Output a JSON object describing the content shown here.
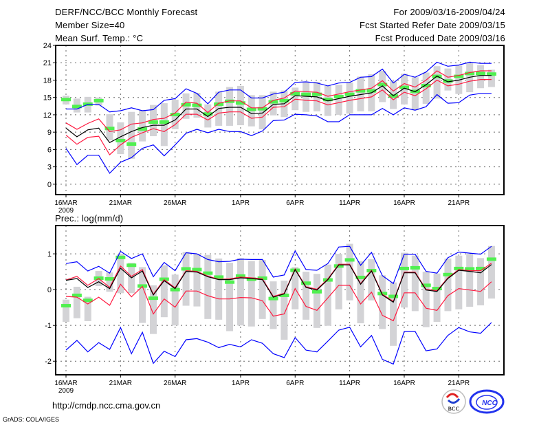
{
  "header": {
    "title": "DERF/NCC/BCC Monthly Forecast",
    "member_size": "Member Size=40",
    "variable": "Mean Surf. Temp.: °C",
    "period": "For 2009/03/16-2009/04/24",
    "started": "Fcst Started Refer Date 2009/03/15",
    "produced": "Fcst Produced Date 2009/03/16"
  },
  "footer": {
    "url": "http://cmdp.ncc.cma.gov.cn",
    "credit": "GrADS: COLA/IGES",
    "logo_bcc": "BCC",
    "logo_ncc": "NCC"
  },
  "colors": {
    "ensemble_range": "#0000ff",
    "spread": "#ff1a40",
    "mean": "#000000",
    "observed": "#50f050",
    "box": "#d3d3d6"
  },
  "chart_data": [
    {
      "type": "line",
      "title": "Mean Surf. Temp.: °C",
      "x_tick_labels": [
        {
          "day": 0,
          "label": "16MAR"
        },
        {
          "day": 5,
          "label": "21MAR"
        },
        {
          "day": 10,
          "label": "26MAR"
        },
        {
          "day": 16,
          "label": "1APR"
        },
        {
          "day": 21,
          "label": "6APR"
        },
        {
          "day": 26,
          "label": "11APR"
        },
        {
          "day": 31,
          "label": "16APR"
        },
        {
          "day": 36,
          "label": "21APR"
        }
      ],
      "year_label": "2009",
      "yticks": [
        0,
        3,
        6,
        9,
        12,
        15,
        18,
        21,
        24
      ],
      "ylim": [
        -1.8,
        24
      ],
      "grid": true,
      "boxes": [
        [
          13.8,
          15.3
        ],
        [
          12.4,
          14.8
        ],
        [
          12.4,
          15.1
        ],
        [
          13.6,
          15.0
        ],
        [
          7.6,
          12.1
        ],
        [
          5.2,
          10.7
        ],
        [
          4.4,
          12.5
        ],
        [
          7.4,
          12.8
        ],
        [
          8.3,
          13.7
        ],
        [
          6.6,
          14.0
        ],
        [
          9.5,
          14.6
        ],
        [
          11.3,
          15.7
        ],
        [
          11.5,
          15.8
        ],
        [
          9.8,
          13.8
        ],
        [
          10.1,
          16.0
        ],
        [
          10.1,
          16.8
        ],
        [
          10.2,
          17.0
        ],
        [
          10.0,
          15.4
        ],
        [
          9.5,
          15.4
        ],
        [
          11.9,
          16.0
        ],
        [
          11.6,
          16.2
        ],
        [
          12.8,
          16.7
        ],
        [
          12.5,
          17.7
        ],
        [
          12.6,
          17.7
        ],
        [
          11.8,
          17.0
        ],
        [
          12.0,
          17.2
        ],
        [
          12.2,
          17.6
        ],
        [
          12.6,
          18.6
        ],
        [
          12.6,
          19.0
        ],
        [
          14.2,
          19.6
        ],
        [
          13.0,
          17.8
        ],
        [
          13.8,
          19.1
        ],
        [
          12.8,
          18.5
        ],
        [
          13.9,
          19.3
        ],
        [
          14.8,
          20.4
        ],
        [
          16.2,
          20.0
        ],
        [
          15.6,
          20.5
        ],
        [
          15.9,
          20.9
        ],
        [
          16.6,
          20.6
        ],
        [
          16.8,
          19.8
        ]
      ],
      "observed": [
        14.7,
        13.5,
        13.9,
        14.5,
        9.7,
        7.6,
        7.0,
        9.6,
        10.8,
        10.8,
        12.1,
        13.8,
        13.7,
        12.2,
        13.9,
        14.4,
        14.1,
        13.0,
        13.1,
        14.3,
        14.5,
        15.7,
        15.6,
        15.6,
        14.7,
        15.2,
        15.6,
        16.2,
        16.2,
        17.3,
        15.3,
        16.8,
        16.1,
        17.1,
        18.7,
        17.9,
        18.7,
        19.2,
        19.2,
        19.1
      ],
      "series": [
        {
          "name": "max",
          "color": "#0000ff",
          "values": [
            13.0,
            13.0,
            13.8,
            13.8,
            12.5,
            12.7,
            13.2,
            12.7,
            12.9,
            14.5,
            14.8,
            16.5,
            15.7,
            13.9,
            15.9,
            16.3,
            16.3,
            14.9,
            14.9,
            15.6,
            15.9,
            17.6,
            17.7,
            17.5,
            17.0,
            17.5,
            17.6,
            18.5,
            18.6,
            19.9,
            17.5,
            19.0,
            18.5,
            19.4,
            21.1,
            20.4,
            20.6,
            21.1,
            20.9,
            20.9
          ]
        },
        {
          "name": "upper",
          "color": "#ff1a40",
          "values": [
            10.6,
            9.5,
            10.5,
            11.3,
            9.1,
            9.4,
            10.4,
            10.6,
            11.2,
            11.4,
            12.3,
            14.2,
            14.0,
            12.4,
            14.0,
            14.4,
            14.4,
            13.2,
            13.2,
            14.5,
            14.9,
            16.1,
            16.0,
            15.9,
            15.2,
            15.6,
            16.0,
            16.3,
            16.6,
            17.9,
            16.1,
            17.4,
            16.8,
            18.0,
            19.6,
            18.5,
            18.8,
            19.3,
            19.6,
            19.6
          ]
        },
        {
          "name": "mean",
          "color": "#000000",
          "values": [
            9.7,
            8.2,
            9.4,
            9.7,
            7.2,
            8.2,
            9.1,
            9.8,
            10.2,
            10.2,
            11.1,
            13.0,
            13.0,
            11.7,
            13.1,
            13.3,
            13.3,
            12.2,
            12.3,
            13.8,
            13.9,
            15.3,
            15.2,
            15.1,
            14.4,
            14.8,
            15.2,
            15.5,
            15.8,
            17.0,
            15.3,
            16.6,
            16.0,
            17.2,
            18.7,
            17.7,
            18.0,
            18.5,
            18.8,
            18.8
          ]
        },
        {
          "name": "lower",
          "color": "#ff1a40",
          "values": [
            8.5,
            6.9,
            8.1,
            8.3,
            5.1,
            6.8,
            8.1,
            8.9,
            9.6,
            9.1,
            10.3,
            12.1,
            12.1,
            11.1,
            12.3,
            12.5,
            12.5,
            11.4,
            11.6,
            13.3,
            13.4,
            14.7,
            14.5,
            14.4,
            13.7,
            14.1,
            14.5,
            14.8,
            15.1,
            16.3,
            14.6,
            15.9,
            15.3,
            16.5,
            18.0,
            17.0,
            17.3,
            17.8,
            18.1,
            18.1
          ]
        },
        {
          "name": "min",
          "color": "#0000ff",
          "values": [
            6.2,
            3.4,
            5.0,
            5.0,
            1.9,
            3.8,
            4.6,
            6.2,
            6.8,
            4.9,
            6.8,
            8.8,
            9.5,
            8.9,
            9.5,
            9.1,
            9.1,
            8.4,
            9.2,
            11.0,
            11.1,
            12.1,
            12.0,
            11.8,
            10.8,
            10.8,
            12.0,
            12.0,
            12.0,
            13.1,
            12.0,
            13.2,
            12.8,
            13.4,
            15.5,
            14.0,
            14.1,
            15.4,
            15.7,
            15.7
          ]
        }
      ]
    },
    {
      "type": "line",
      "title": "Prec.: log(mm/d)",
      "x_tick_labels": [
        {
          "day": 0,
          "label": "16MAR"
        },
        {
          "day": 5,
          "label": "21MAR"
        },
        {
          "day": 10,
          "label": "26MAR"
        },
        {
          "day": 16,
          "label": "1APR"
        },
        {
          "day": 21,
          "label": "6APR"
        },
        {
          "day": 26,
          "label": "11APR"
        },
        {
          "day": 31,
          "label": "16APR"
        },
        {
          "day": 36,
          "label": "21APR"
        }
      ],
      "year_label": "2009",
      "yticks": [
        -2,
        -1,
        0,
        1
      ],
      "ylim": [
        -2.38,
        1.79
      ],
      "grid": true,
      "boxes": [
        [
          -0.9,
          -0.28
        ],
        [
          -0.8,
          0.08
        ],
        [
          -0.88,
          -0.2
        ],
        [
          0.1,
          0.52
        ],
        [
          -0.06,
          0.48
        ],
        [
          -0.1,
          1.0
        ],
        [
          -0.1,
          0.75
        ],
        [
          -0.93,
          0.63
        ],
        [
          -1.24,
          0.12
        ],
        [
          -0.77,
          0.68
        ],
        [
          -1.0,
          0.42
        ],
        [
          -0.45,
          1.05
        ],
        [
          -0.47,
          1.0
        ],
        [
          -0.82,
          0.97
        ],
        [
          -0.84,
          0.87
        ],
        [
          -1.16,
          0.75
        ],
        [
          -1.0,
          0.88
        ],
        [
          -1.03,
          0.8
        ],
        [
          -0.82,
          0.83
        ],
        [
          -1.1,
          0.23
        ],
        [
          -1.4,
          0.25
        ],
        [
          -0.55,
          0.63
        ],
        [
          -0.84,
          0.5
        ],
        [
          -1.07,
          0.44
        ],
        [
          -1.01,
          0.7
        ],
        [
          -0.55,
          1.0
        ],
        [
          -0.3,
          1.28
        ],
        [
          -0.94,
          0.8
        ],
        [
          -0.3,
          0.85
        ],
        [
          -1.1,
          0.4
        ],
        [
          -1.57,
          0.2
        ],
        [
          -0.5,
          1.03
        ],
        [
          -0.6,
          0.95
        ],
        [
          -1.05,
          0.5
        ],
        [
          -0.9,
          0.45
        ],
        [
          -0.6,
          0.87
        ],
        [
          -0.55,
          0.95
        ],
        [
          -0.48,
          1.0
        ],
        [
          -0.44,
          0.88
        ],
        [
          -0.25,
          1.22
        ]
      ],
      "observed": [
        -0.44,
        -0.15,
        -0.29,
        0.33,
        0.31,
        0.91,
        0.69,
        0.11,
        -0.23,
        0.3,
        0.01,
        0.59,
        0.57,
        0.47,
        0.36,
        0.22,
        0.39,
        0.3,
        0.33,
        -0.24,
        -0.15,
        0.55,
        0.19,
        -0.05,
        0.28,
        0.67,
        0.84,
        0.35,
        0.54,
        -0.1,
        -0.18,
        0.6,
        0.62,
        0.13,
        0.04,
        0.43,
        0.6,
        0.59,
        0.6,
        0.86
      ],
      "series": [
        {
          "name": "max",
          "color": "#0000ff",
          "values": [
            0.73,
            0.78,
            0.52,
            0.65,
            0.46,
            1.07,
            0.87,
            1.0,
            0.36,
            0.76,
            0.53,
            1.03,
            1.0,
            0.84,
            0.78,
            0.79,
            0.85,
            0.84,
            0.84,
            0.35,
            0.41,
            1.08,
            0.56,
            0.54,
            0.73,
            1.19,
            1.21,
            0.68,
            1.04,
            0.39,
            0.17,
            0.99,
            0.99,
            0.51,
            0.46,
            0.89,
            1.05,
            1.02,
            0.99,
            1.21
          ]
        },
        {
          "name": "upper",
          "color": "#ff1a40",
          "values": [
            0.27,
            0.37,
            0.12,
            0.31,
            0.06,
            0.66,
            0.37,
            0.56,
            -0.13,
            0.28,
            0.05,
            0.53,
            0.51,
            0.38,
            0.29,
            0.3,
            0.35,
            0.33,
            0.3,
            -0.19,
            -0.1,
            0.58,
            0.08,
            0.01,
            0.3,
            0.71,
            0.71,
            0.17,
            0.54,
            -0.13,
            -0.33,
            0.49,
            0.49,
            0.01,
            -0.03,
            0.33,
            0.56,
            0.53,
            0.53,
            0.74
          ]
        },
        {
          "name": "mean",
          "color": "#000000",
          "values": [
            0.26,
            0.31,
            0.06,
            0.22,
            0.03,
            0.6,
            0.33,
            0.52,
            -0.15,
            0.25,
            0.03,
            0.51,
            0.49,
            0.36,
            0.28,
            0.28,
            0.33,
            0.31,
            0.28,
            -0.21,
            -0.12,
            0.56,
            0.06,
            -0.01,
            0.28,
            0.69,
            0.69,
            0.15,
            0.52,
            -0.15,
            -0.35,
            0.47,
            0.47,
            -0.01,
            -0.05,
            0.31,
            0.54,
            0.51,
            0.47,
            0.7
          ]
        },
        {
          "name": "lower",
          "color": "#ff1a40",
          "values": [
            -0.19,
            -0.21,
            -0.4,
            -0.21,
            -0.44,
            0.15,
            -0.2,
            0.09,
            -0.68,
            -0.26,
            -0.49,
            -0.04,
            -0.04,
            -0.17,
            -0.26,
            -0.26,
            -0.22,
            -0.23,
            -0.31,
            -0.74,
            -0.68,
            0.03,
            -0.47,
            -0.58,
            -0.23,
            0.12,
            0.12,
            -0.4,
            -0.07,
            -0.72,
            -0.87,
            -0.09,
            -0.09,
            -0.52,
            -0.58,
            -0.17,
            0.03,
            -0.01,
            -0.05,
            0.22
          ]
        },
        {
          "name": "min",
          "color": "#0000ff",
          "values": [
            -1.69,
            -1.42,
            -1.74,
            -1.48,
            -1.67,
            -1.06,
            -1.79,
            -1.19,
            -2.06,
            -1.72,
            -1.87,
            -1.4,
            -1.37,
            -1.47,
            -1.62,
            -1.53,
            -1.6,
            -1.4,
            -1.5,
            -1.79,
            -1.9,
            -1.34,
            -1.69,
            -1.74,
            -1.44,
            -1.13,
            -1.05,
            -1.6,
            -1.28,
            -1.95,
            -2.08,
            -1.17,
            -1.17,
            -1.71,
            -1.66,
            -1.28,
            -1.06,
            -1.18,
            -1.22,
            -0.92
          ]
        }
      ]
    }
  ]
}
